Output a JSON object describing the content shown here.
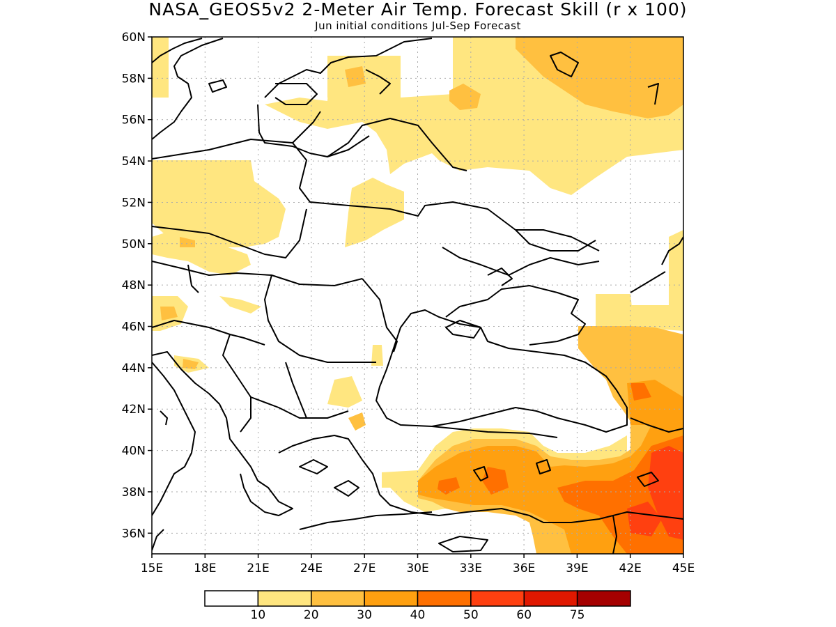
{
  "title": "NASA_GEOS5v2 2-Meter Air Temp. Forecast Skill (r x 100)",
  "subtitle": "Jun initial conditions  Jul-Sep Forecast",
  "map": {
    "lon_range": [
      15,
      45
    ],
    "lat_range": [
      35,
      60
    ],
    "x_ticks": [
      "15E",
      "18E",
      "21E",
      "24E",
      "27E",
      "30E",
      "33E",
      "36E",
      "39E",
      "42E",
      "45E"
    ],
    "y_ticks": [
      "60N",
      "58N",
      "56N",
      "54N",
      "52N",
      "50N",
      "48N",
      "46N",
      "44N",
      "42N",
      "40N",
      "38N",
      "36N"
    ],
    "gridlines": "dotted"
  },
  "legend": {
    "colors": [
      "#ffffff",
      "#ffe680",
      "#ffc040",
      "#ffa010",
      "#ff7000",
      "#ff4010",
      "#e01800",
      "#a50000"
    ],
    "labels": [
      "10",
      "20",
      "30",
      "40",
      "50",
      "60",
      "75"
    ]
  }
}
